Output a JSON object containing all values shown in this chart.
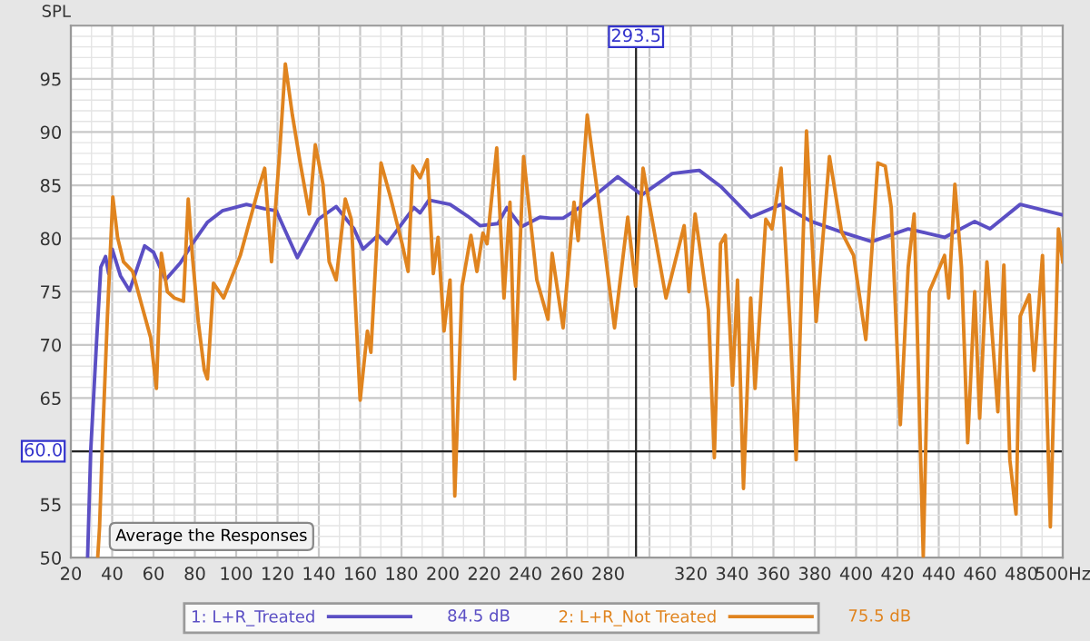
{
  "chart_data": {
    "type": "line",
    "ylabel": "SPL",
    "xlim": [
      20,
      500
    ],
    "ylim": [
      50,
      100
    ],
    "xticks": [
      20,
      40,
      60,
      80,
      100,
      120,
      140,
      160,
      180,
      200,
      220,
      240,
      260,
      280,
      {
        "value": 300,
        "label": null
      },
      320,
      340,
      360,
      380,
      400,
      420,
      440,
      460,
      480,
      {
        "value": 500,
        "label": "500Hz"
      }
    ],
    "yticks": [
      50,
      55,
      {
        "value": 60,
        "label": null
      },
      65,
      70,
      75,
      80,
      85,
      90,
      95
    ],
    "grid": true,
    "legend": "bottom",
    "line_style": "solid",
    "marker": "none",
    "ref_lines": [
      {
        "axis": "x",
        "value": 293.5,
        "label": "293.5",
        "color": "#222222"
      },
      {
        "axis": "y",
        "value": 60,
        "label": "60.0",
        "color": "#222222"
      }
    ],
    "annotations": [
      "Average the Responses",
      "84.5 dB",
      "75.5 dB"
    ],
    "series": [
      {
        "name": "1: L+R_Treated",
        "color": "#5b4fc4",
        "x": [
          28.1,
          29.6,
          32.5,
          34.5,
          36.8,
          38.3,
          40,
          44,
          48.4,
          55.7,
          60,
          65.8,
          73,
          78.8,
          86,
          93.3,
          105,
          113.6,
          119.4,
          129.6,
          139.7,
          148.4,
          157,
          161.4,
          168.7,
          173,
          186,
          189,
          193.3,
          203.5,
          212,
          218,
          226.7,
          231,
          238,
          247,
          252.3,
          258.2,
          267,
          284.6,
          296.3,
          311,
          324.1,
          334.4,
          349,
          363.7,
          378.3,
          393,
          407.6,
          425.2,
          442.8,
          457.4,
          464.8,
          479.4,
          500
        ],
        "values": [
          50,
          60,
          70.5,
          77.3,
          78.3,
          76.7,
          79,
          76.5,
          75.1,
          79.3,
          78.7,
          76.1,
          77.7,
          79.5,
          81.5,
          82.6,
          83.2,
          82.8,
          82.6,
          78.2,
          81.8,
          83,
          80.9,
          79,
          80.3,
          79.5,
          82.9,
          82.4,
          83.6,
          83.2,
          82.1,
          81.2,
          81.4,
          82.9,
          81.1,
          82,
          81.9,
          81.9,
          83,
          85.8,
          84.1,
          86.1,
          86.4,
          84.9,
          82,
          83.2,
          81.6,
          80.6,
          79.7,
          80.9,
          80.1,
          81.6,
          80.9,
          83.2,
          82.2
        ]
      },
      {
        "name": "2: L+R_Not Treated",
        "color": "#e0841f",
        "x": [
          33,
          33.9,
          35.4,
          37.7,
          40.3,
          42.6,
          45.5,
          49.9,
          54.2,
          58.6,
          61.4,
          63.8,
          66.7,
          70.1,
          74.5,
          76.8,
          78.8,
          81.7,
          84.6,
          86.1,
          89,
          93.9,
          102,
          111.1,
          113.8,
          117.1,
          121,
          123.8,
          127.2,
          131,
          135.4,
          138.3,
          142,
          145,
          148.4,
          152.8,
          155.7,
          160,
          163.5,
          165.2,
          170.1,
          174.5,
          180.3,
          183.2,
          185.5,
          189,
          192.5,
          195.4,
          197.7,
          200.6,
          203.5,
          205.8,
          209.3,
          213.6,
          216.5,
          219.4,
          221.4,
          226.1,
          229.6,
          232.5,
          234.8,
          239.1,
          245.5,
          250.9,
          252.9,
          258.2,
          263.5,
          265.5,
          269.9,
          275.8,
          283.1,
          289.5,
          293.3,
          296.9,
          308,
          316.8,
          319.1,
          322.1,
          328.5,
          331.4,
          334.4,
          336.7,
          340.2,
          342.6,
          345.5,
          349,
          351.1,
          356.3,
          359.3,
          363.7,
          368.1,
          371,
          376,
          380.7,
          387.1,
          393,
          398.8,
          404.7,
          410.5,
          414.1,
          417,
          421.4,
          425.2,
          428.1,
          432.5,
          435.4,
          442.8,
          444.8,
          447.8,
          451,
          454,
          457.4,
          459.8,
          463.3,
          468.6,
          471.5,
          474.4,
          477.4,
          479.4,
          483.8,
          486.1,
          490.2,
          494,
          497.9,
          500
        ],
        "values": [
          50,
          52.9,
          61.4,
          72.7,
          83.9,
          80.1,
          77.8,
          76.9,
          73.8,
          70.7,
          65.9,
          78.6,
          75,
          74.4,
          74.1,
          83.7,
          78.4,
          72.1,
          67.6,
          66.8,
          75.8,
          74.4,
          78.4,
          84.9,
          86.6,
          77.8,
          88,
          96.4,
          91.6,
          87.1,
          82.3,
          88.8,
          85.1,
          77.8,
          76.1,
          83.7,
          81.8,
          64.8,
          71.3,
          69.3,
          87.1,
          84,
          79.5,
          76.9,
          86.8,
          85.7,
          87.4,
          76.7,
          80.1,
          71.3,
          76.1,
          55.8,
          75.5,
          80.3,
          76.9,
          80.5,
          79.5,
          88.5,
          74.4,
          83.4,
          66.8,
          87.7,
          76.1,
          72.4,
          78.6,
          71.6,
          83.4,
          79.8,
          91.6,
          82.9,
          71.6,
          82,
          75.5,
          86.6,
          74.4,
          81.2,
          75,
          82.3,
          73.3,
          59.4,
          79.5,
          80.3,
          66.2,
          76.1,
          56.5,
          74.4,
          65.9,
          81.8,
          80.9,
          86.6,
          71.6,
          59.2,
          90.1,
          72.2,
          87.7,
          80.6,
          78.4,
          70.5,
          87.1,
          86.8,
          82.9,
          62.5,
          77.3,
          82.3,
          50.1,
          75,
          78.4,
          74.4,
          85.1,
          77.3,
          60.8,
          75,
          63.1,
          77.8,
          63.7,
          77.5,
          59.2,
          54.1,
          72.7,
          74.7,
          67.6,
          78.4,
          52.9,
          80.9,
          77.8
        ]
      }
    ]
  }
}
